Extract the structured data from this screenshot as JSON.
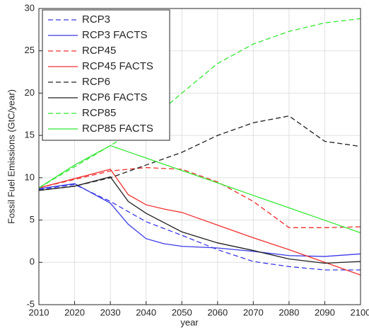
{
  "chart_data": {
    "type": "line",
    "xlabel": "year",
    "ylabel": "Fossil Fuel Emissions (GtC/year)",
    "x": [
      2010,
      2020,
      2030,
      2035,
      2040,
      2045,
      2050,
      2060,
      2070,
      2080,
      2090,
      2100
    ],
    "xlim": [
      2010,
      2100
    ],
    "xticks": [
      2010,
      2020,
      2030,
      2040,
      2050,
      2060,
      2070,
      2080,
      2090,
      2100
    ],
    "ylim": [
      -5,
      30
    ],
    "yticks": [
      -5,
      0,
      5,
      10,
      15,
      20,
      25,
      30
    ],
    "grid": true,
    "legend": "upper left",
    "series": [
      {
        "name": "RCP3",
        "color": "#3a3ae8",
        "linestyle": "dashed",
        "values": [
          8.6,
          9.2,
          7.2,
          6.0,
          4.8,
          4.0,
          3.2,
          1.5,
          0.1,
          -0.5,
          -0.9,
          -0.9
        ]
      },
      {
        "name": "RCP3 FACTS",
        "color": "#3a3ae8",
        "linestyle": "solid",
        "values": [
          8.7,
          9.3,
          7.0,
          4.5,
          2.8,
          2.2,
          1.9,
          1.7,
          1.3,
          0.8,
          0.7,
          1.0
        ]
      },
      {
        "name": "RCP45",
        "color": "#f03030",
        "linestyle": "dashed",
        "values": [
          8.8,
          9.8,
          10.8,
          11.0,
          11.2,
          11.1,
          11.0,
          9.5,
          7.2,
          4.1,
          4.1,
          4.2
        ]
      },
      {
        "name": "RCP45 FACTS",
        "color": "#f03030",
        "linestyle": "solid",
        "values": [
          8.8,
          9.9,
          11.0,
          8.0,
          6.8,
          6.3,
          5.9,
          4.4,
          2.9,
          1.5,
          0.0,
          -1.5
        ]
      },
      {
        "name": "RCP6",
        "color": "#202020",
        "linestyle": "dashed",
        "values": [
          8.5,
          9.0,
          10.0,
          10.75,
          11.5,
          12.25,
          13.0,
          15.0,
          16.5,
          17.3,
          14.3,
          13.7
        ]
      },
      {
        "name": "RCP6 FACTS",
        "color": "#202020",
        "linestyle": "solid",
        "values": [
          8.5,
          9.0,
          10.1,
          7.2,
          5.8,
          4.7,
          3.6,
          2.3,
          1.4,
          0.4,
          -0.1,
          0.1
        ]
      },
      {
        "name": "RCP85",
        "color": "#33e833",
        "linestyle": "dashed",
        "values": [
          8.8,
          11.3,
          13.8,
          15.1,
          16.5,
          18.2,
          20.0,
          23.5,
          25.8,
          27.3,
          28.3,
          28.8
        ]
      },
      {
        "name": "RCP85 FACTS",
        "color": "#33e833",
        "linestyle": "solid",
        "values": [
          8.8,
          11.5,
          13.8,
          13.06,
          12.33,
          11.59,
          10.86,
          9.39,
          7.91,
          6.44,
          4.97,
          3.5
        ]
      }
    ]
  }
}
